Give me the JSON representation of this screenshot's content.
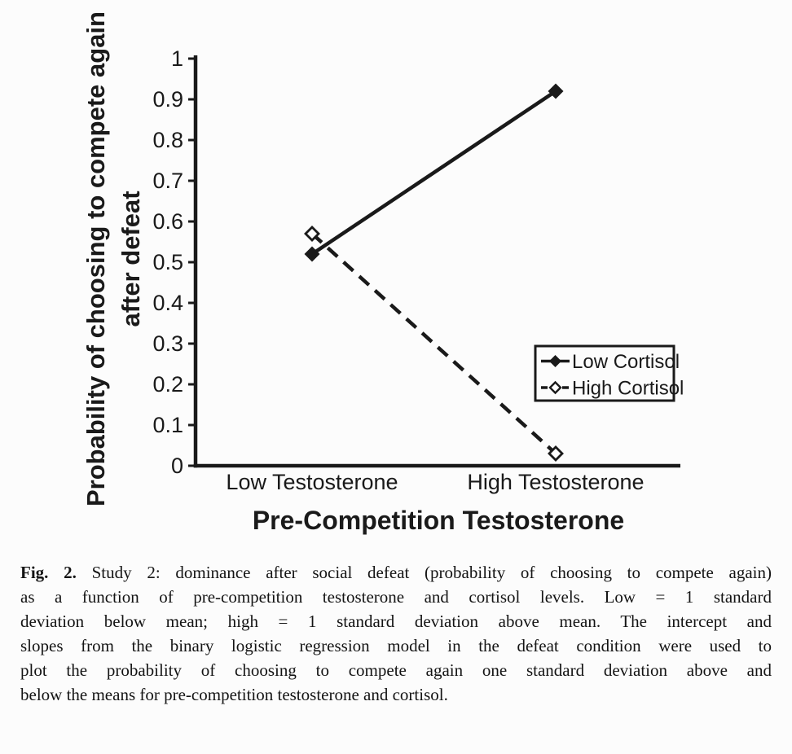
{
  "figure": {
    "background": "#fcfcfc",
    "ink": "#1a1a1a"
  },
  "chart_data": {
    "type": "line",
    "title": "",
    "xlabel": "Pre-Competition Testosterone",
    "ylabel_line1": "Probability of choosing to compete again",
    "ylabel_line2": "after defeat",
    "categories": [
      "Low Testosterone",
      "High Testosterone"
    ],
    "series": [
      {
        "name": "Low Cortisol",
        "values": [
          0.52,
          0.92
        ],
        "line_style": "solid",
        "marker": "filled-diamond"
      },
      {
        "name": "High Cortisol",
        "values": [
          0.57,
          0.03
        ],
        "line_style": "dashed",
        "marker": "open-diamond"
      }
    ],
    "ylim": [
      0,
      1
    ],
    "yticks": [
      0,
      0.1,
      0.2,
      0.3,
      0.4,
      0.5,
      0.6,
      0.7,
      0.8,
      0.9,
      1
    ],
    "ytick_labels": [
      "0",
      "0.1",
      "0.2",
      "0.3",
      "0.4",
      "0.5",
      "0.6",
      "0.7",
      "0.8",
      "0.9",
      "1"
    ],
    "grid": false,
    "legend_position": "right-middle",
    "legend": [
      "Low Cortisol",
      "High Cortisol"
    ]
  },
  "caption": {
    "label": "Fig. 2.",
    "lines": [
      "Study 2: dominance after social defeat (probability of choosing to compete again)",
      "as a function of pre-competition testosterone and cortisol levels. Low = 1 standard",
      "deviation below mean; high = 1 standard deviation above mean. The intercept and",
      "slopes from the binary logistic regression model in the defeat condition were used to",
      "plot the probability of choosing to compete again one standard deviation above and",
      "below the means for pre-competition testosterone and cortisol."
    ]
  }
}
